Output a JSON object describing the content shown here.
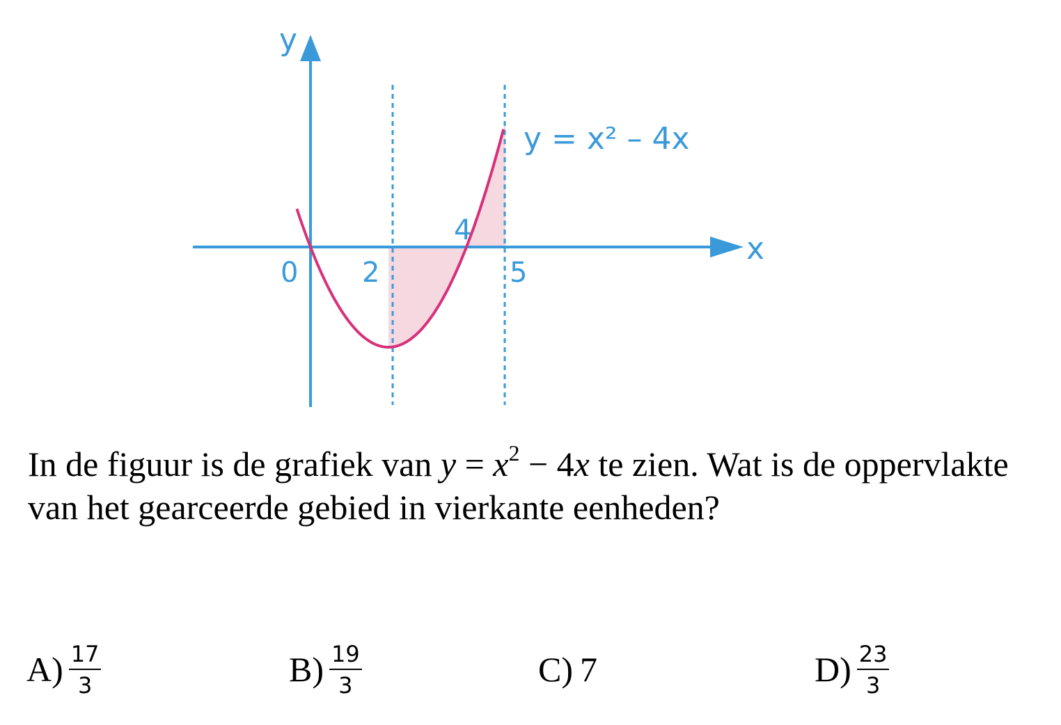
{
  "figure": {
    "equation_label": "y = x² – 4x",
    "x_axis_label": "x",
    "y_axis_label": "y",
    "tick_labels": [
      "0",
      "2",
      "4",
      "5"
    ],
    "curve_color": "#d6317a",
    "axis_color": "#3a9ad9",
    "shade_color": "#f6d8e1"
  },
  "chart_data": {
    "type": "line",
    "title": "y = x² – 4x",
    "xlabel": "x",
    "ylabel": "y",
    "function": "x^2 - 4x",
    "x_domain": [
      -0.35,
      4.95
    ],
    "vertex": [
      2,
      -4
    ],
    "roots": [
      0,
      4
    ],
    "shaded_region": {
      "from_x": 2,
      "to_x": 5,
      "bounded_by": "curve and x-axis"
    },
    "dashed_lines_x": [
      2,
      5
    ],
    "x_ticks": [
      "0",
      "2",
      "4",
      "5"
    ]
  },
  "question": {
    "text_before": "In de figuur is de grafiek van ",
    "math_y": "y",
    "math_eq": " = ",
    "math_x": "x",
    "math_exp": "2",
    "math_minus": " − ",
    "math_four": "4",
    "math_x2": "x",
    "text_after": " te zien. Wat is de oppervlakte van het gearceerde gebied in vierkante eenheden?"
  },
  "answers": {
    "a": {
      "letter": "A)",
      "num": "17",
      "den": "3"
    },
    "b": {
      "letter": "B)",
      "num": "19",
      "den": "3"
    },
    "c": {
      "letter": "C)",
      "value": "7"
    },
    "d": {
      "letter": "D)",
      "num": "23",
      "den": "3"
    }
  }
}
